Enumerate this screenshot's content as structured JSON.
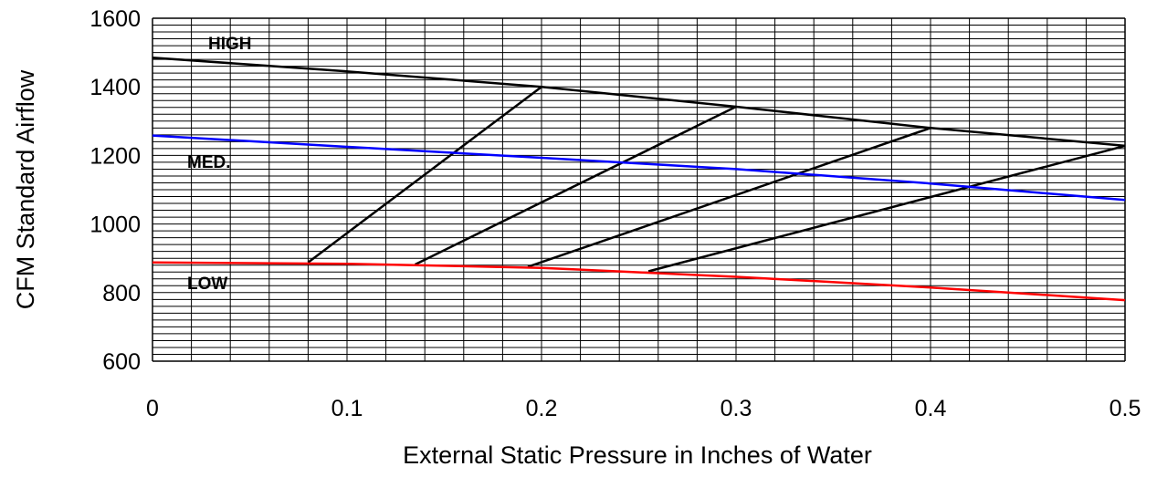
{
  "chart_data": {
    "type": "line",
    "title": "",
    "xlabel": "External Static Pressure in Inches of Water",
    "ylabel": "CFM Standard Airflow",
    "xlim": [
      0,
      0.5
    ],
    "ylim": [
      600,
      1600
    ],
    "x_ticks": [
      "0",
      "0.1",
      "0.2",
      "0.3",
      "0.4",
      "0.5"
    ],
    "y_ticks": [
      "600",
      "800",
      "1000",
      "1200",
      "1400",
      "1600"
    ],
    "grid": true,
    "legend": "none",
    "series": [
      {
        "name": "HIGH",
        "color": "#000000",
        "points": [
          [
            0,
            1485
          ],
          [
            0.1,
            1445
          ],
          [
            0.2,
            1400
          ],
          [
            0.3,
            1342
          ],
          [
            0.4,
            1280
          ],
          [
            0.5,
            1228
          ]
        ]
      },
      {
        "name": "MED.",
        "color": "#0000ff",
        "points": [
          [
            0,
            1258
          ],
          [
            0.1,
            1225
          ],
          [
            0.2,
            1193
          ],
          [
            0.3,
            1160
          ],
          [
            0.4,
            1118
          ],
          [
            0.5,
            1070
          ]
        ]
      },
      {
        "name": "LOW",
        "color": "#ff0000",
        "points": [
          [
            0,
            888
          ],
          [
            0.1,
            884
          ],
          [
            0.2,
            872
          ],
          [
            0.3,
            846
          ],
          [
            0.4,
            815
          ],
          [
            0.5,
            778
          ]
        ]
      }
    ],
    "connector_lines": [
      {
        "color": "#000000",
        "points": [
          [
            0.08,
            888
          ],
          [
            0.2,
            1400
          ]
        ]
      },
      {
        "color": "#000000",
        "points": [
          [
            0.135,
            882
          ],
          [
            0.3,
            1342
          ]
        ]
      },
      {
        "color": "#000000",
        "points": [
          [
            0.193,
            875
          ],
          [
            0.4,
            1280
          ]
        ]
      },
      {
        "color": "#000000",
        "points": [
          [
            0.255,
            862
          ],
          [
            0.5,
            1228
          ]
        ]
      }
    ]
  }
}
